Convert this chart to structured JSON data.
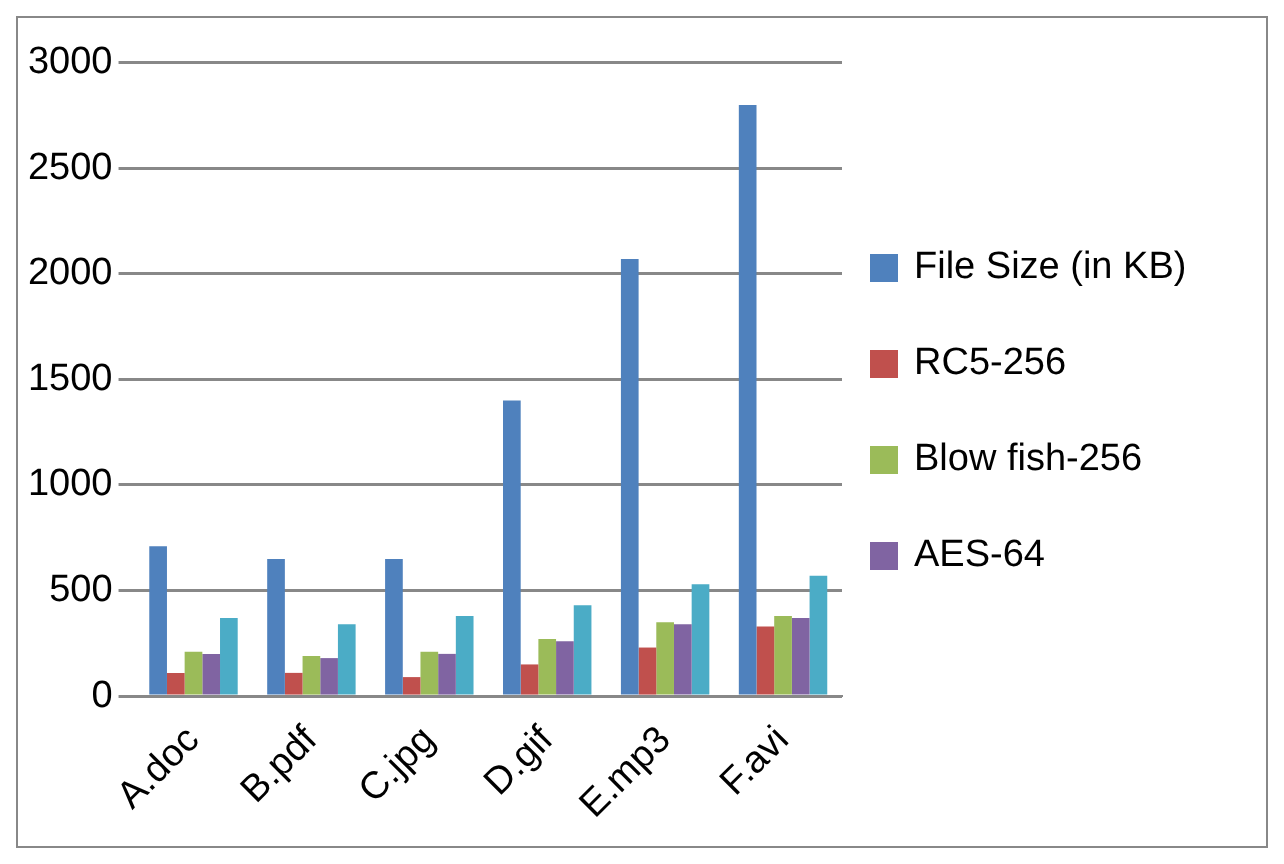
{
  "chart_data": {
    "type": "bar",
    "categories": [
      "A.doc",
      "B.pdf",
      "C.jpg",
      "D.gif",
      "E.mp3",
      "F.avi"
    ],
    "series": [
      {
        "name": "File Size (in KB)",
        "color": "#4f81bd",
        "values": [
          710,
          650,
          650,
          1400,
          2070,
          2800
        ]
      },
      {
        "name": "RC5-256",
        "color": "#c0504d",
        "values": [
          110,
          110,
          90,
          150,
          230,
          330
        ]
      },
      {
        "name": "Blow fish-256",
        "color": "#9bbb59",
        "values": [
          210,
          190,
          210,
          270,
          350,
          380
        ]
      },
      {
        "name": "AES-64",
        "color": "#8064a2",
        "values": [
          200,
          180,
          200,
          260,
          340,
          370
        ]
      },
      {
        "color": "#4bacc6",
        "values": [
          370,
          340,
          380,
          430,
          530,
          570
        ]
      }
    ],
    "ylim": [
      0,
      3000
    ],
    "yticks": [
      0,
      500,
      1000,
      1500,
      2000,
      2500,
      3000
    ],
    "grid": "y",
    "legend": "right"
  }
}
